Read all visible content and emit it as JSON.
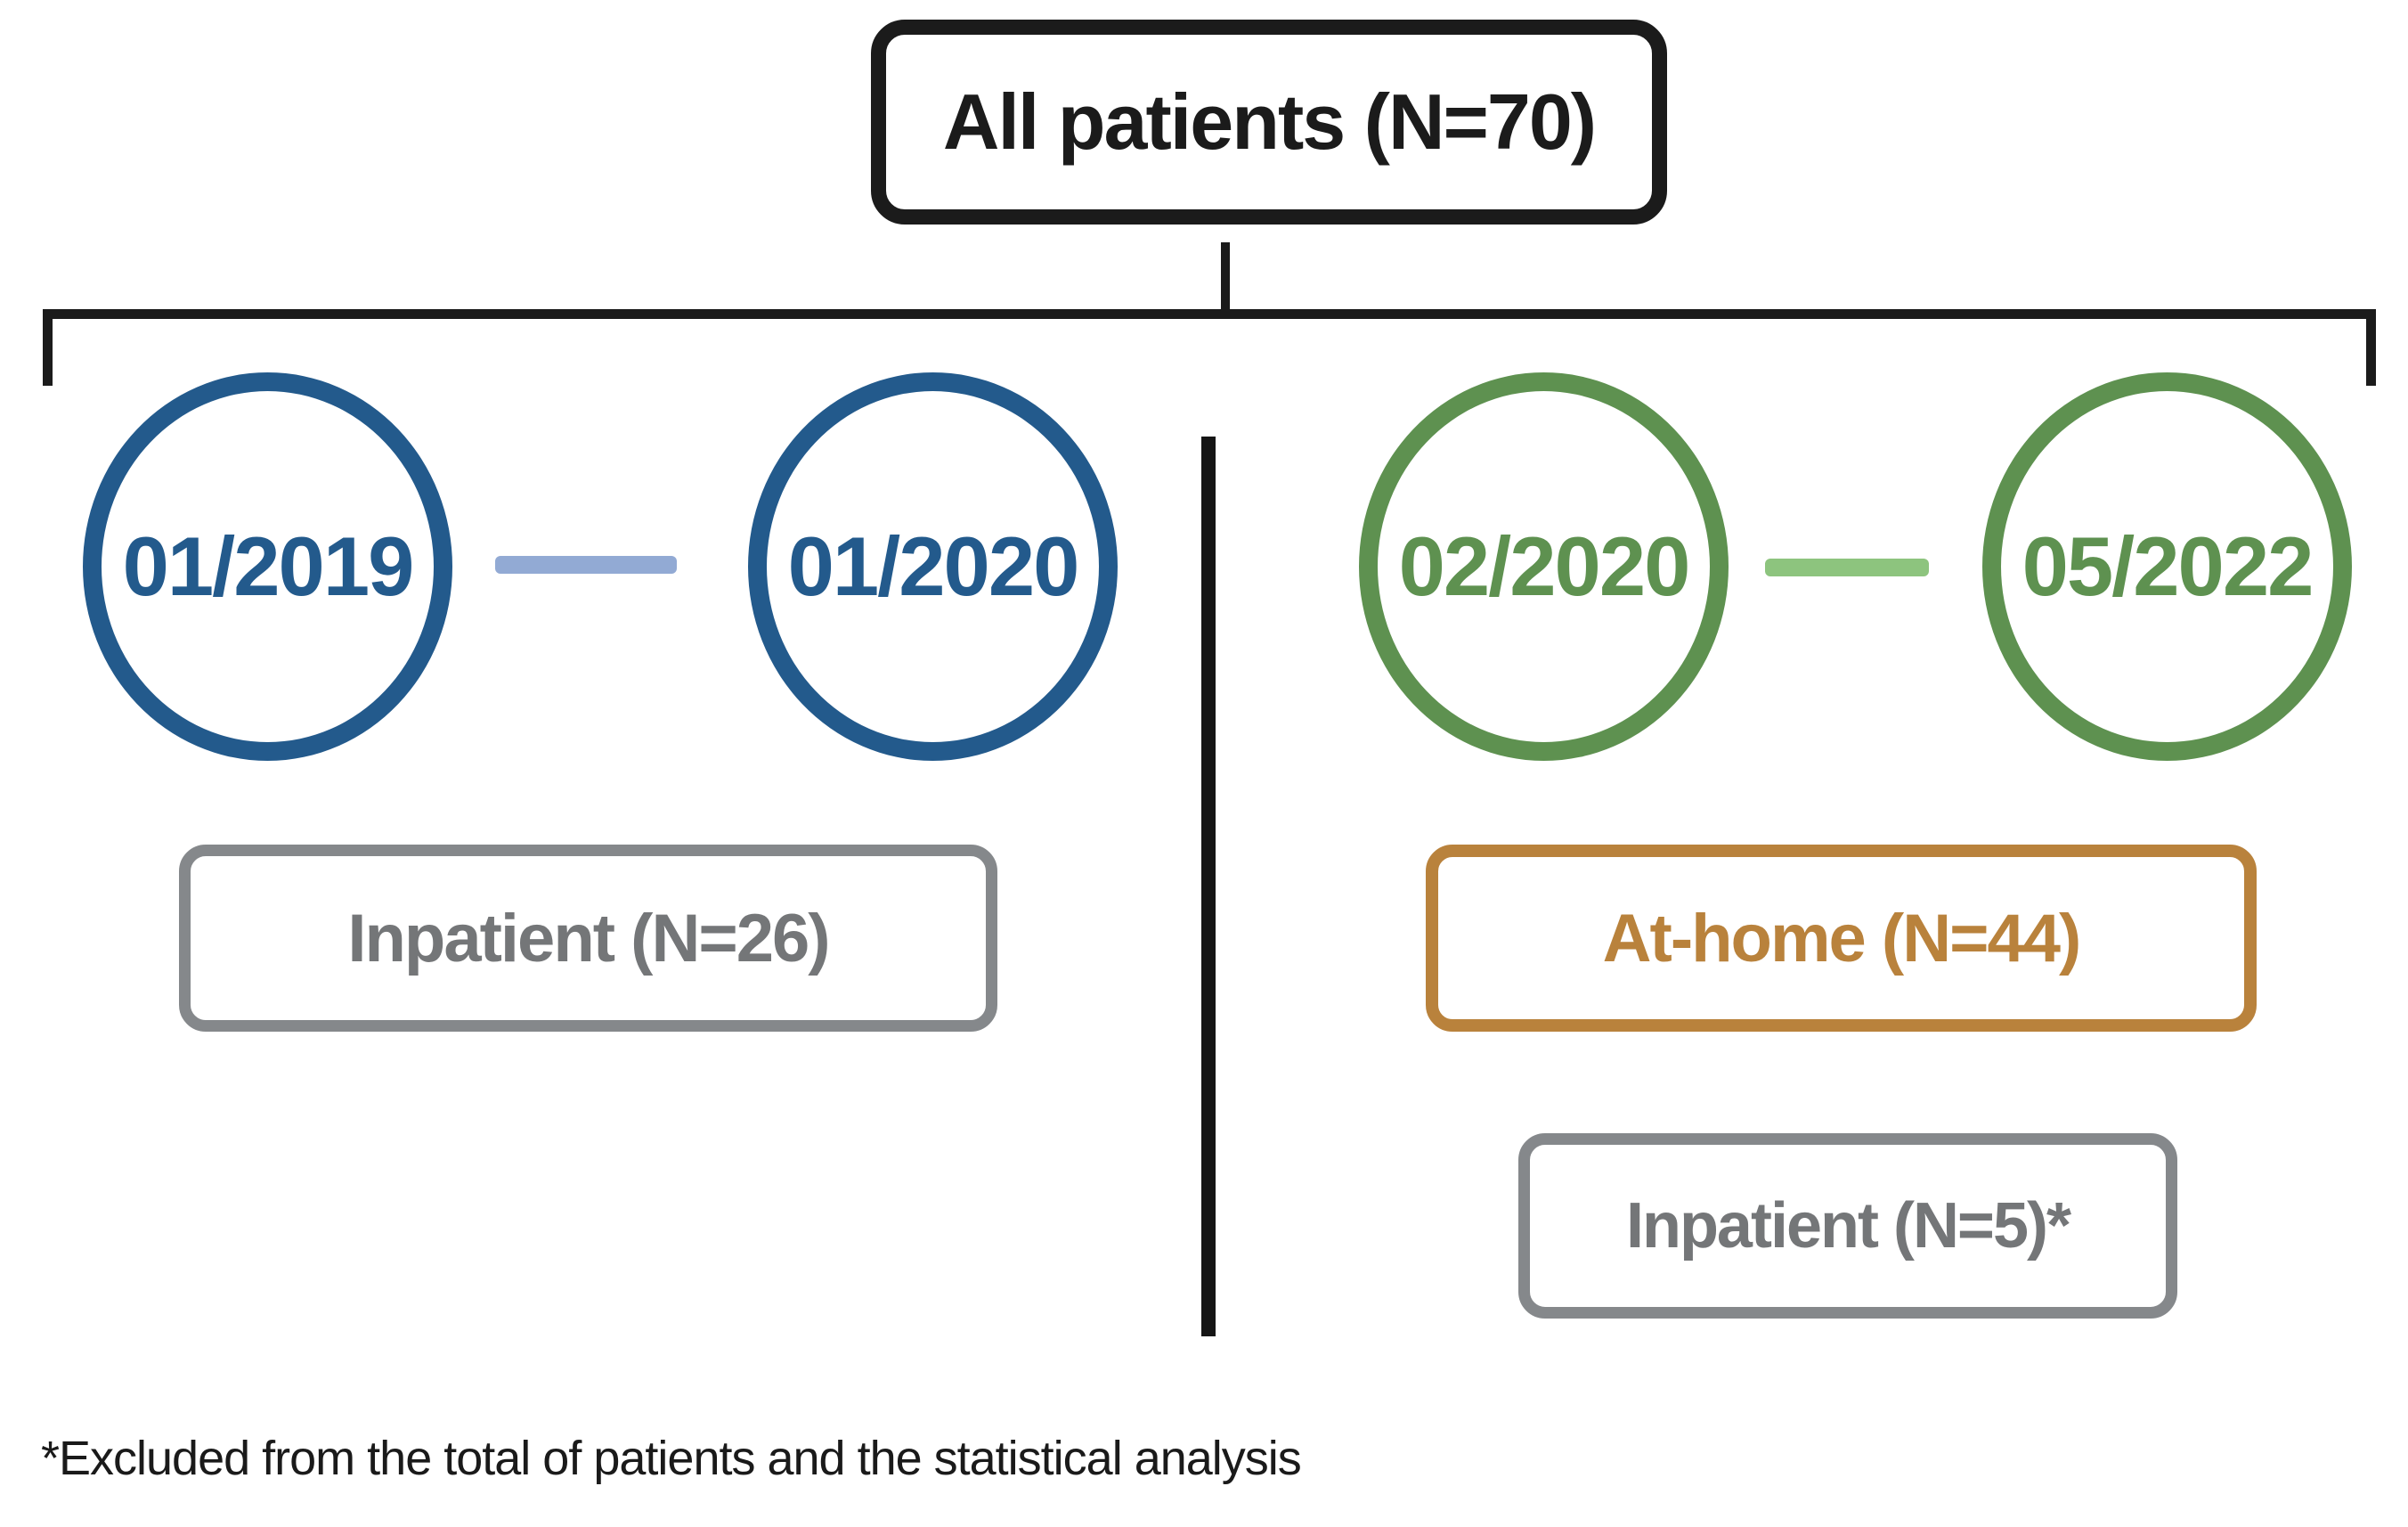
{
  "figure": {
    "title_box": "All patients (N=70)",
    "left_branch": {
      "start_date": "01/2019",
      "end_date": "01/2020",
      "outcome_box": "Inpatient (N=26)"
    },
    "right_branch": {
      "start_date": "02/2020",
      "end_date": "05/2022",
      "outcome_box_primary": "At-home (N=44)",
      "outcome_box_secondary": "Inpatient (N=5)*"
    },
    "footnote": "*Excluded from the total of patients and the statistical analysis"
  },
  "colors": {
    "outline_black": "#1b1b1b",
    "blue_circle": "#235a8c",
    "blue_connector": "#92aad4",
    "green_circle": "#5e9150",
    "green_connector": "#8dc47e",
    "orange_box": "#b9823c",
    "gray_box_border": "#85888b",
    "gray_box_text": "#747678"
  }
}
